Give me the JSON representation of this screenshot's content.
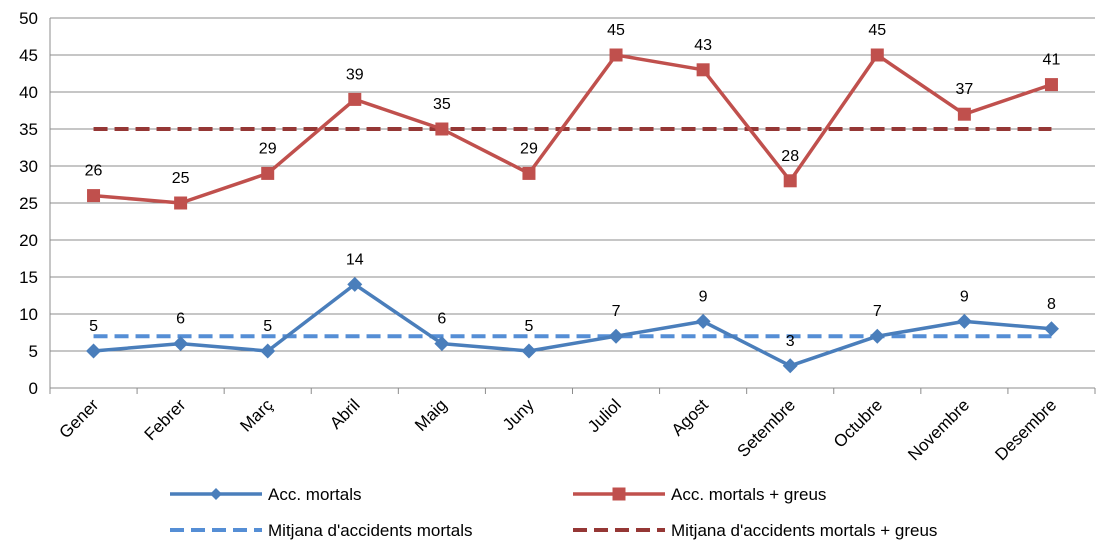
{
  "chart_data": {
    "type": "line",
    "categories": [
      "Gener",
      "Febrer",
      "Març",
      "Abril",
      "Maig",
      "Juny",
      "Juliol",
      "Agost",
      "Setembre",
      "Octubre",
      "Novembre",
      "Desembre"
    ],
    "series": [
      {
        "name": "Acc. mortals",
        "values": [
          5,
          6,
          5,
          14,
          6,
          5,
          7,
          9,
          3,
          7,
          9,
          8
        ],
        "color": "#4a7ebb",
        "marker": "diamond",
        "style": "solid",
        "data_labels": true
      },
      {
        "name": "Acc. mortals + greus",
        "values": [
          26,
          25,
          29,
          39,
          35,
          29,
          45,
          43,
          28,
          45,
          37,
          41
        ],
        "color": "#c0504d",
        "marker": "square",
        "style": "solid",
        "data_labels": true
      },
      {
        "name": "Mitjana d'accidents mortals",
        "values": [
          7,
          7,
          7,
          7,
          7,
          7,
          7,
          7,
          7,
          7,
          7,
          7
        ],
        "color": "#558ed5",
        "marker": "none",
        "style": "dashed",
        "data_labels": false
      },
      {
        "name": "Mitjana d'accidents mortals + greus",
        "values": [
          35,
          35,
          35,
          35,
          35,
          35,
          35,
          35,
          35,
          35,
          35,
          35
        ],
        "color": "#953735",
        "marker": "none",
        "style": "dashed",
        "data_labels": false
      }
    ],
    "ylim": [
      0,
      50
    ],
    "yticks": [
      0,
      5,
      10,
      15,
      20,
      25,
      30,
      35,
      40,
      45,
      50
    ],
    "xlabel": "",
    "ylabel": "",
    "title": "",
    "grid": "horizontal",
    "legend_position": "bottom"
  }
}
